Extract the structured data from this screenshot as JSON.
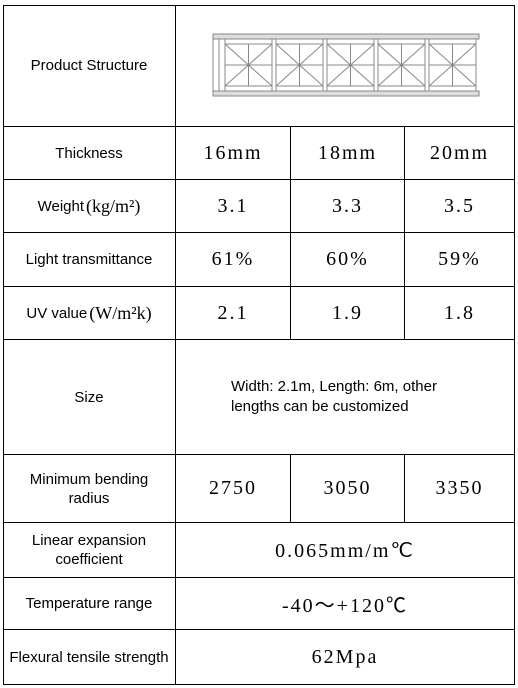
{
  "table": {
    "rows": [
      {
        "label": "Product Structure"
      },
      {
        "label": "Thickness",
        "values": [
          "16mm",
          "18mm",
          "20mm"
        ]
      },
      {
        "label": "Weight",
        "unit": "(kg/m²)",
        "values": [
          "3.1",
          "3.3",
          "3.5"
        ]
      },
      {
        "label": "Light transmittance",
        "values": [
          "61%",
          "60%",
          "59%"
        ]
      },
      {
        "label": "UV value",
        "unit": "(W/m²k)",
        "values": [
          "2.1",
          "1.9",
          "1.8"
        ]
      },
      {
        "label": "Size",
        "values": [
          "Width: 2.1m, Length: 6m, other lengths can be customized"
        ]
      },
      {
        "label": "Minimum bending radius",
        "values": [
          "2750",
          "3050",
          "3350"
        ]
      },
      {
        "label": "Linear expansion coefficient",
        "values": [
          "0.065mm/m℃"
        ]
      },
      {
        "label": "Temperature range",
        "values": [
          "-40～+120℃"
        ]
      },
      {
        "label": "Flexural tensile strength",
        "values": [
          "62Mpa"
        ]
      }
    ]
  }
}
